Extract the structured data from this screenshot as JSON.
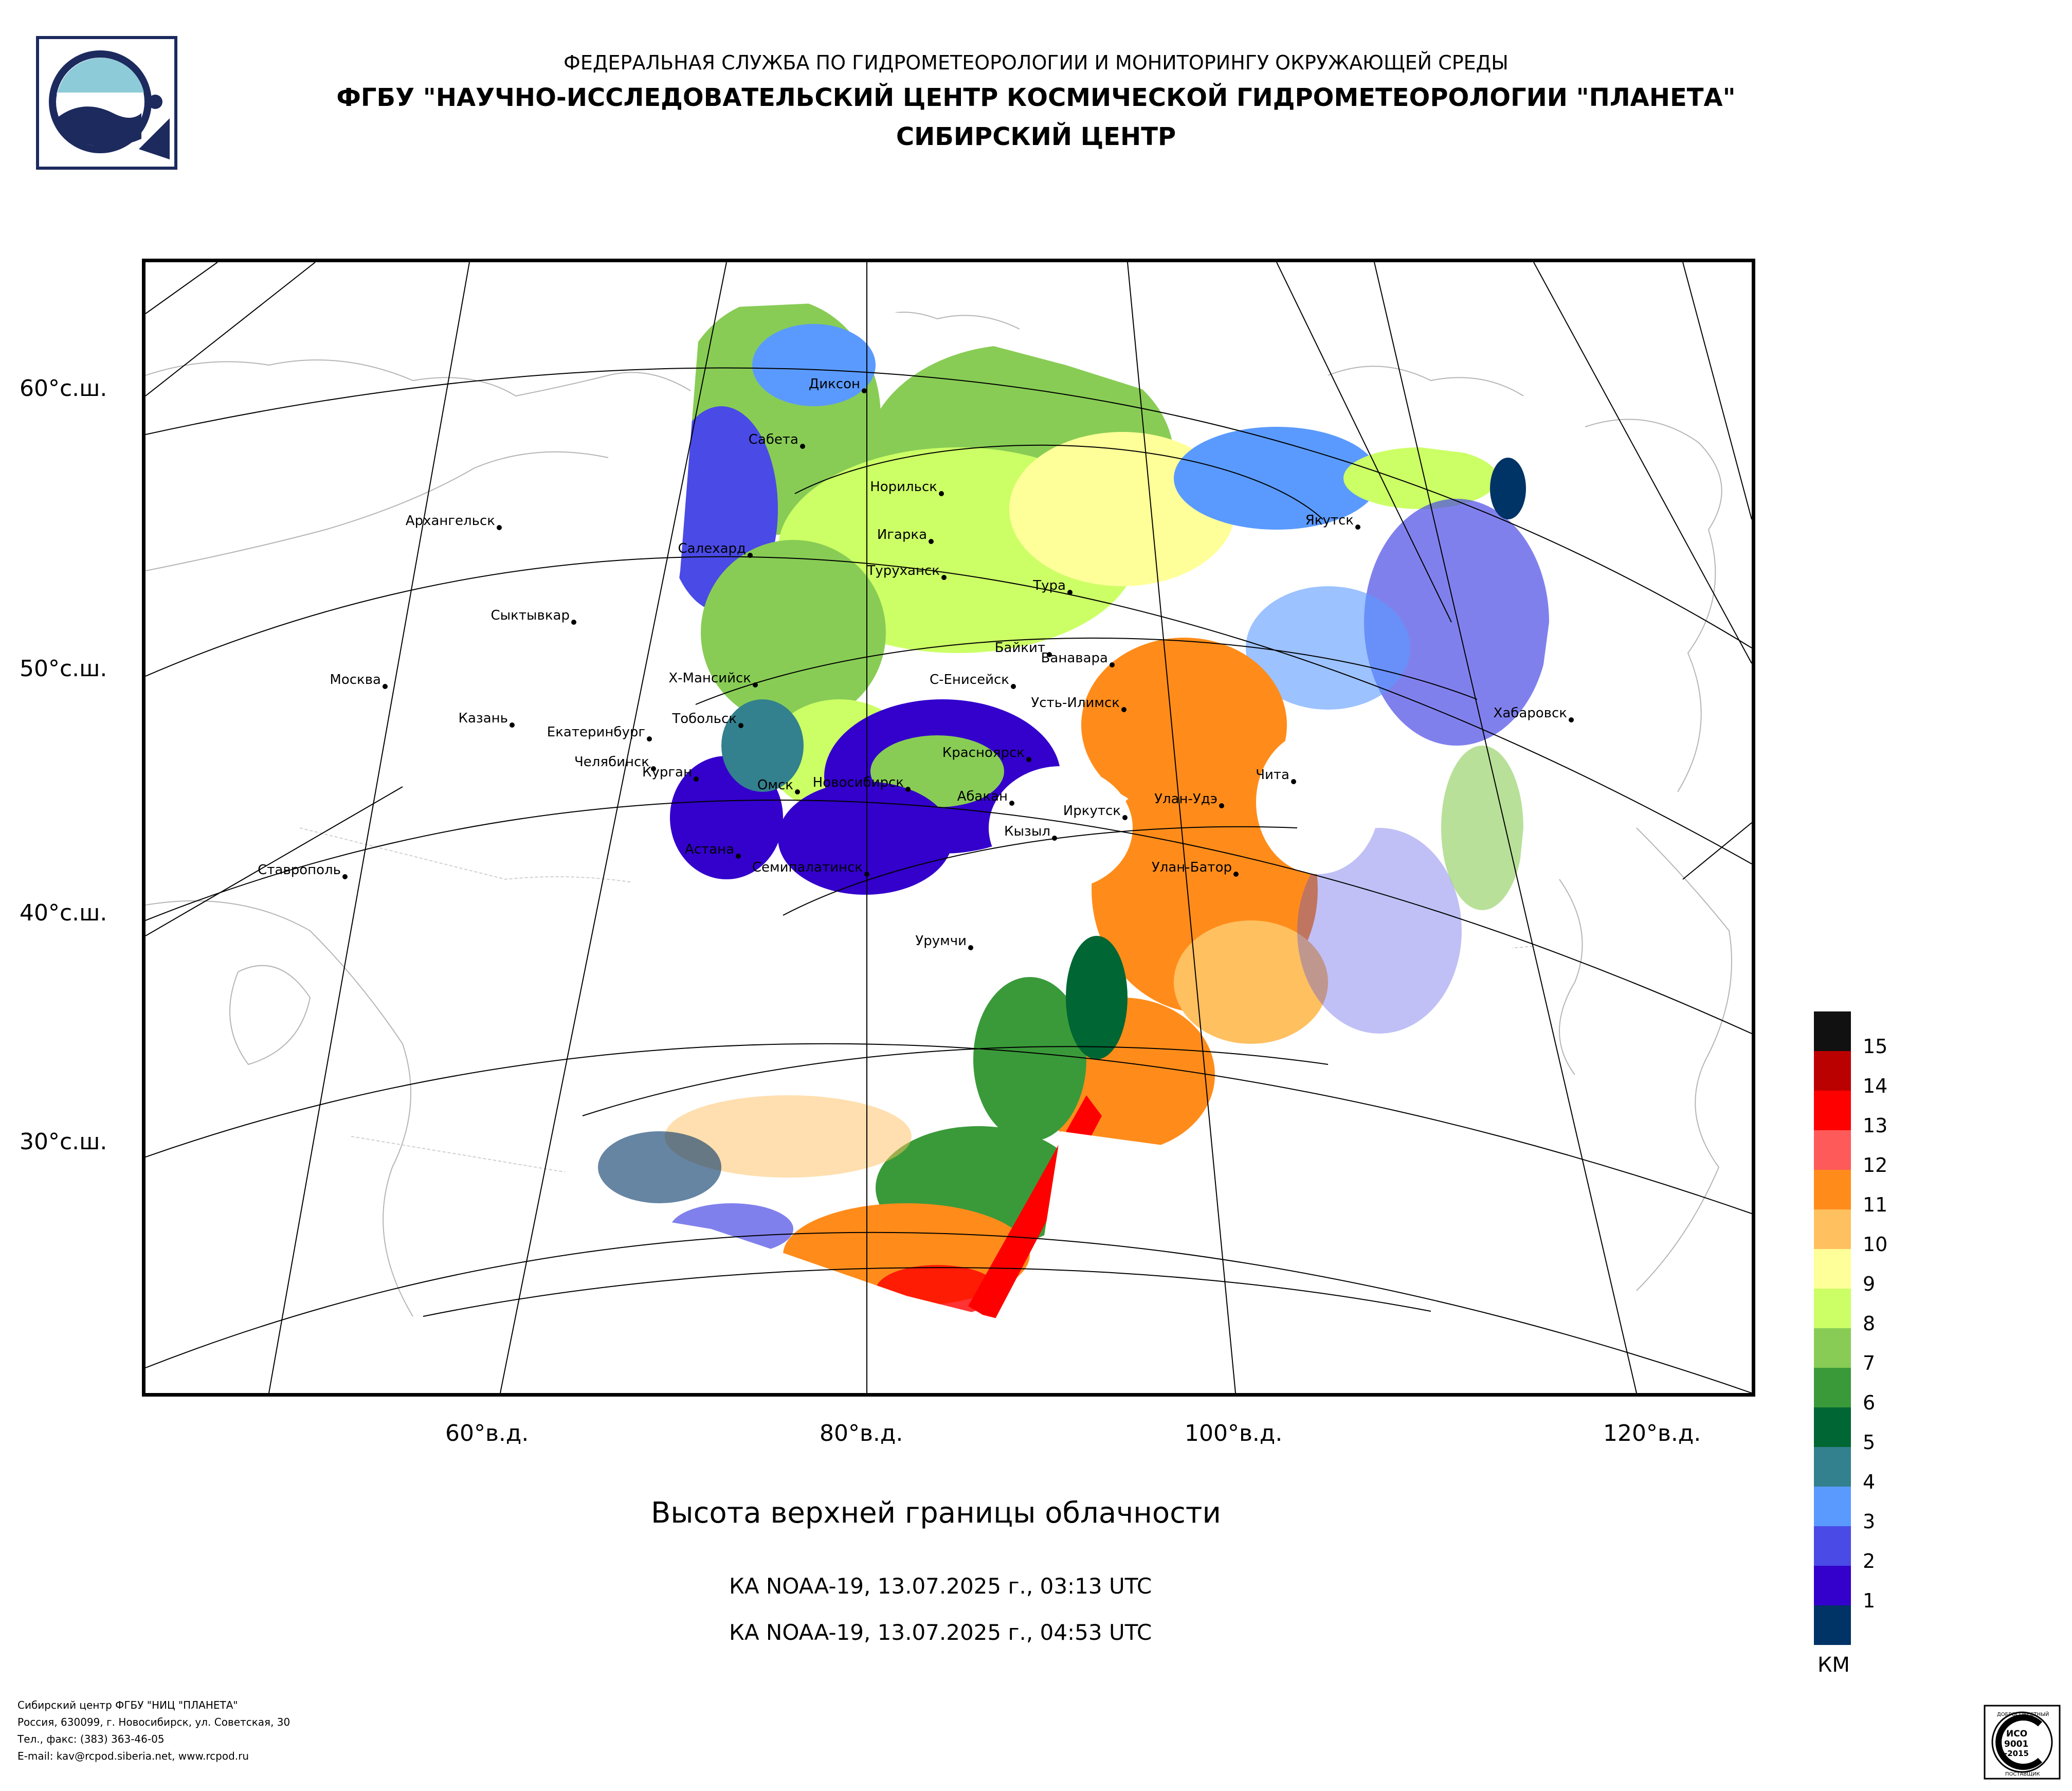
{
  "header": {
    "line1": "ФЕДЕРАЛЬНАЯ СЛУЖБА ПО ГИДРОМЕТЕОРОЛОГИИ И МОНИТОРИНГУ ОКРУЖАЮЩЕЙ СРЕДЫ",
    "line2": "ФГБУ \"НАУЧНО-ИССЛЕДОВАТЕЛЬСКИЙ ЦЕНТР КОСМИЧЕСКОЙ ГИДРОМЕТЕОРОЛОГИИ \"ПЛАНЕТА\"",
    "line3": "СИБИРСКИЙ ЦЕНТР"
  },
  "map": {
    "lat_labels": [
      "60°с.ш.",
      "50°с.ш.",
      "40°с.ш.",
      "30°с.ш."
    ],
    "lon_labels": [
      "60°в.д.",
      "80°в.д.",
      "100°в.д.",
      "120°в.д."
    ],
    "cities": [
      {
        "name": "Диксон"
      },
      {
        "name": "Сабета"
      },
      {
        "name": "Норильск"
      },
      {
        "name": "Архангельск"
      },
      {
        "name": "Салехард"
      },
      {
        "name": "Игарка"
      },
      {
        "name": "Туруханск"
      },
      {
        "name": "Якутск"
      },
      {
        "name": "Тура"
      },
      {
        "name": "Сыктывкар"
      },
      {
        "name": "Байкит"
      },
      {
        "name": "Ванавара"
      },
      {
        "name": "Москва"
      },
      {
        "name": "Х-Мансийск"
      },
      {
        "name": "С-Енисейск"
      },
      {
        "name": "Усть-Илимск"
      },
      {
        "name": "Хабаровск"
      },
      {
        "name": "Казань"
      },
      {
        "name": "Тобольск"
      },
      {
        "name": "Екатеринбург"
      },
      {
        "name": "Красноярск"
      },
      {
        "name": "Челябинск"
      },
      {
        "name": "Чита"
      },
      {
        "name": "Курган"
      },
      {
        "name": "Омск"
      },
      {
        "name": "Новосибирск"
      },
      {
        "name": "Абакан"
      },
      {
        "name": "Улан-Удэ"
      },
      {
        "name": "Иркутск"
      },
      {
        "name": "Кызыл"
      },
      {
        "name": "Астана"
      },
      {
        "name": "Ставрополь"
      },
      {
        "name": "Семипалатинск"
      },
      {
        "name": "Улан-Батор"
      },
      {
        "name": "Урумчи"
      }
    ]
  },
  "title": "Высота верхней границы облачности",
  "passes": [
    "КА NOAA-19, 13.07.2025 г., 03:13 UTC",
    "КА NOAA-19, 13.07.2025 г., 04:53 UTC"
  ],
  "legend": {
    "unit": "КМ",
    "items": [
      {
        "label": "15",
        "color": "#111111"
      },
      {
        "label": "14",
        "color": "#bb0000"
      },
      {
        "label": "13",
        "color": "#ff0000"
      },
      {
        "label": "12",
        "color": "#ff5a5a"
      },
      {
        "label": "11",
        "color": "#ff8c1a"
      },
      {
        "label": "10",
        "color": "#ffc060"
      },
      {
        "label": "9",
        "color": "#ffff99"
      },
      {
        "label": "8",
        "color": "#ccff66"
      },
      {
        "label": "7",
        "color": "#88cc55"
      },
      {
        "label": "6",
        "color": "#3a9a3a"
      },
      {
        "label": "5",
        "color": "#006633"
      },
      {
        "label": "4",
        "color": "#33808f"
      },
      {
        "label": "3",
        "color": "#5a9aff"
      },
      {
        "label": "2",
        "color": "#4a4ae6"
      },
      {
        "label": "1",
        "color": "#3300cc"
      },
      {
        "label": "",
        "color": "#003366"
      }
    ]
  },
  "footer": {
    "lines": [
      "Сибирский центр ФГБУ \"НИЦ \"ПЛАНЕТА\"",
      "Россия, 630099, г. Новосибирск, ул. Советская, 30",
      "Тел., факс: (383) 363-46-05",
      "E-mail: kav@rcpod.siberia.net, www.rcpod.ru"
    ]
  },
  "iso_badge": {
    "line1": "ИСО",
    "line2": "9001",
    "line3": "-2015",
    "arc_top": "ДОБРОСОВЕСТНЫЙ",
    "arc_bottom": "ПОСТАВЩИК"
  }
}
